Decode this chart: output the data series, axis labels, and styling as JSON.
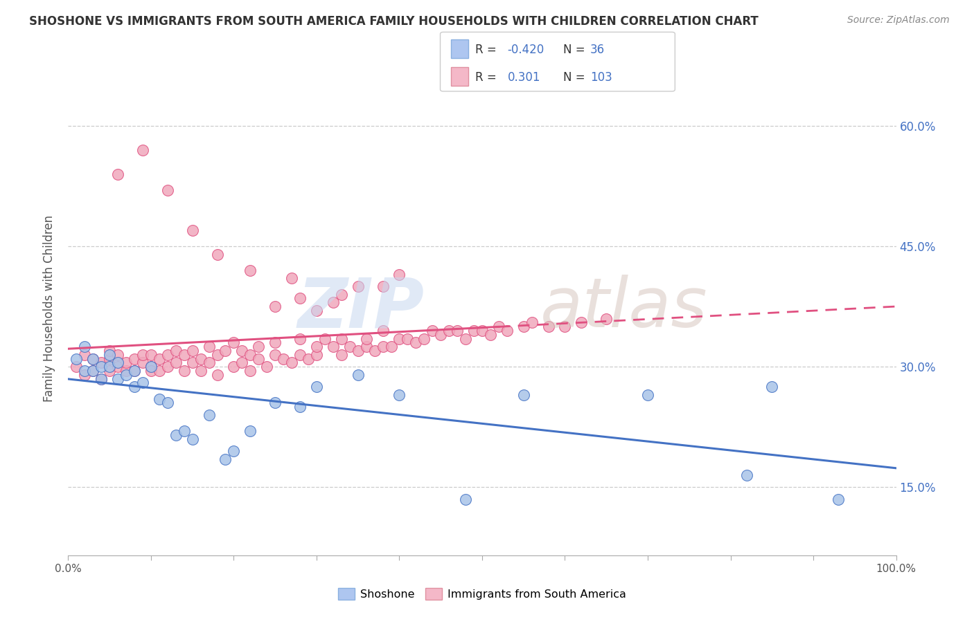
{
  "title": "SHOSHONE VS IMMIGRANTS FROM SOUTH AMERICA FAMILY HOUSEHOLDS WITH CHILDREN CORRELATION CHART",
  "source_text": "Source: ZipAtlas.com",
  "ylabel": "Family Households with Children",
  "yticks": [
    "15.0%",
    "30.0%",
    "45.0%",
    "60.0%"
  ],
  "ytick_values": [
    0.15,
    0.3,
    0.45,
    0.6
  ],
  "xlim": [
    0.0,
    1.0
  ],
  "ylim": [
    0.065,
    0.68
  ],
  "legend_labels_bottom": [
    "Shoshone",
    "Immigrants from South America"
  ],
  "blue_color": "#4472C4",
  "pink_color": "#E05080",
  "blue_dot_color": "#a8c4e8",
  "pink_dot_color": "#f0a8bc",
  "R_shoshone": -0.42,
  "N_shoshone": 36,
  "R_sa": 0.301,
  "N_sa": 103,
  "shoshone_x": [
    0.01,
    0.02,
    0.02,
    0.03,
    0.03,
    0.04,
    0.04,
    0.05,
    0.05,
    0.06,
    0.06,
    0.07,
    0.08,
    0.08,
    0.09,
    0.1,
    0.11,
    0.12,
    0.13,
    0.14,
    0.15,
    0.17,
    0.19,
    0.2,
    0.22,
    0.25,
    0.28,
    0.3,
    0.35,
    0.4,
    0.48,
    0.55,
    0.7,
    0.82,
    0.85,
    0.93
  ],
  "shoshone_y": [
    0.31,
    0.295,
    0.325,
    0.295,
    0.31,
    0.3,
    0.285,
    0.3,
    0.315,
    0.285,
    0.305,
    0.29,
    0.295,
    0.275,
    0.28,
    0.3,
    0.26,
    0.255,
    0.215,
    0.22,
    0.21,
    0.24,
    0.185,
    0.195,
    0.22,
    0.255,
    0.25,
    0.275,
    0.29,
    0.265,
    0.135,
    0.265,
    0.265,
    0.165,
    0.275,
    0.135
  ],
  "sa_x": [
    0.01,
    0.02,
    0.02,
    0.03,
    0.03,
    0.04,
    0.04,
    0.05,
    0.05,
    0.05,
    0.06,
    0.06,
    0.07,
    0.07,
    0.08,
    0.08,
    0.09,
    0.09,
    0.1,
    0.1,
    0.1,
    0.11,
    0.11,
    0.12,
    0.12,
    0.13,
    0.13,
    0.14,
    0.14,
    0.15,
    0.15,
    0.16,
    0.16,
    0.17,
    0.17,
    0.18,
    0.18,
    0.19,
    0.2,
    0.2,
    0.21,
    0.21,
    0.22,
    0.22,
    0.23,
    0.23,
    0.24,
    0.25,
    0.25,
    0.26,
    0.27,
    0.28,
    0.28,
    0.29,
    0.3,
    0.3,
    0.31,
    0.32,
    0.33,
    0.33,
    0.34,
    0.35,
    0.36,
    0.36,
    0.37,
    0.38,
    0.38,
    0.39,
    0.4,
    0.41,
    0.42,
    0.43,
    0.44,
    0.45,
    0.46,
    0.47,
    0.48,
    0.49,
    0.5,
    0.51,
    0.52,
    0.53,
    0.55,
    0.56,
    0.58,
    0.6,
    0.62,
    0.65,
    0.3,
    0.35,
    0.28,
    0.32,
    0.25,
    0.4,
    0.27,
    0.22,
    0.18,
    0.15,
    0.12,
    0.09,
    0.06,
    0.33,
    0.38
  ],
  "sa_y": [
    0.3,
    0.29,
    0.315,
    0.31,
    0.295,
    0.305,
    0.285,
    0.31,
    0.295,
    0.32,
    0.3,
    0.315,
    0.295,
    0.305,
    0.31,
    0.295,
    0.305,
    0.315,
    0.3,
    0.295,
    0.315,
    0.295,
    0.31,
    0.3,
    0.315,
    0.305,
    0.32,
    0.295,
    0.315,
    0.305,
    0.32,
    0.295,
    0.31,
    0.305,
    0.325,
    0.29,
    0.315,
    0.32,
    0.3,
    0.33,
    0.305,
    0.32,
    0.295,
    0.315,
    0.31,
    0.325,
    0.3,
    0.315,
    0.33,
    0.31,
    0.305,
    0.315,
    0.335,
    0.31,
    0.315,
    0.325,
    0.335,
    0.325,
    0.315,
    0.335,
    0.325,
    0.32,
    0.325,
    0.335,
    0.32,
    0.325,
    0.345,
    0.325,
    0.335,
    0.335,
    0.33,
    0.335,
    0.345,
    0.34,
    0.345,
    0.345,
    0.335,
    0.345,
    0.345,
    0.34,
    0.35,
    0.345,
    0.35,
    0.355,
    0.35,
    0.35,
    0.355,
    0.36,
    0.37,
    0.4,
    0.385,
    0.38,
    0.375,
    0.415,
    0.41,
    0.42,
    0.44,
    0.47,
    0.52,
    0.57,
    0.54,
    0.39,
    0.4
  ]
}
